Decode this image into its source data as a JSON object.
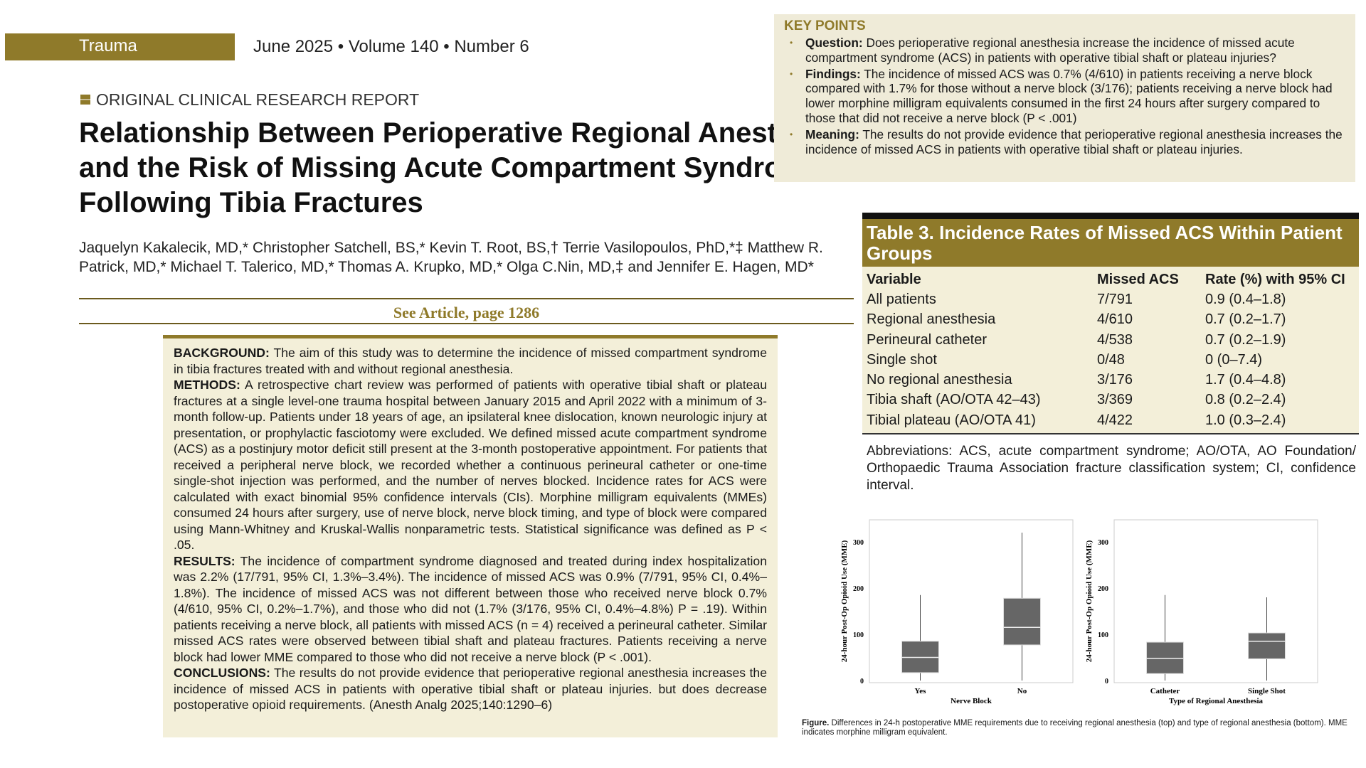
{
  "header": {
    "section": "Trauma",
    "issue": "June 2025 • Volume 140 • Number 6",
    "report_type": "ORIGINAL CLINICAL RESEARCH REPORT"
  },
  "article": {
    "title": "Relationship Between Perioperative Regional Anesthesia and the Risk of Missing Acute Compartment Syndrome Following Tibia Fractures",
    "authors": "Jaquelyn Kakalecik, MD,* Christopher Satchell, BS,* Kevin T. Root, BS,† Terrie Vasilopoulos, PhD,*‡ Matthew R. Patrick, MD,* Michael T. Talerico, MD,* Thomas A. Krupko, MD,* Olga C.Nin, MD,‡ and Jennifer E. Hagen, MD*",
    "see_article": "See Article, page 1286"
  },
  "abstract": [
    {
      "label": "BACKGROUND:",
      "text": " The aim of this study was to determine the incidence of missed compartment syndrome in tibia fractures treated with and without regional anesthesia."
    },
    {
      "label": "METHODS:",
      "text": " A retrospective chart review was performed of patients with operative tibial shaft or plateau fractures at a single level-one trauma hospital between January 2015 and April 2022 with a minimum of 3-month follow-up. Patients under 18 years of age, an ipsilateral knee dislocation, known neurologic injury at presentation, or prophylactic fasciotomy were excluded. We defined missed acute compartment syndrome (ACS) as a postinjury motor deficit still present at the 3-month postoperative appointment. For patients that received a peripheral nerve block, we recorded whether a continuous perineural catheter or one-time single-shot injection was performed, and the number of nerves blocked. Incidence rates for ACS were calculated with exact binomial 95% confidence intervals (CIs). Morphine milligram equivalents (MMEs) consumed 24 hours after surgery, use of nerve block, nerve block timing, and type of block were compared using Mann-Whitney and Kruskal-Wallis nonparametric tests. Statistical significance was defined as P < .05."
    },
    {
      "label": "RESULTS:",
      "text": " The incidence of compartment syndrome diagnosed and treated during index hospitalization was 2.2% (17/791, 95% CI, 1.3%–3.4%). The incidence of missed ACS was 0.9% (7/791, 95% CI, 0.4%–1.8%). The incidence of missed ACS was not different between those who received nerve block 0.7% (4/610, 95% CI, 0.2%–1.7%), and those who did not (1.7% (3/176, 95% CI, 0.4%–4.8%) P = .19). Within patients receiving a nerve block, all patients with missed ACS (n = 4) received a perineural catheter. Similar missed ACS rates were observed between tibial shaft and plateau fractures. Patients receiving a nerve block had lower MME compared to those who did not receive a nerve block (P < .001)."
    },
    {
      "label": "CONCLUSIONS:",
      "text": " The results do not provide evidence that perioperative regional anesthesia increases the incidence of missed ACS in patients with operative tibial shaft or plateau injuries. but does decrease postoperative opioid requirements.  (Anesth Analg 2025;140:1290–6)"
    }
  ],
  "key_points": {
    "title": "KEY POINTS",
    "items": [
      {
        "label": "Question:",
        "text": " Does perioperative regional anesthesia increase the incidence of missed acute compartment syndrome (ACS) in patients with operative tibial shaft or plateau injuries?"
      },
      {
        "label": "Findings:",
        "text": " The incidence of missed ACS was 0.7% (4/610) in patients receiving a nerve block compared with 1.7% for those without a nerve block (3/176); patients receiving a nerve block had lower morphine milligram equivalents consumed in the first 24 hours after surgery compared to those that did not receive a nerve block (P < .001)"
      },
      {
        "label": "Meaning:",
        "text": " The results do not provide evidence that perioperative regional anesthesia increases the incidence of missed ACS in patients with operative tibial shaft or plateau injuries."
      }
    ]
  },
  "table": {
    "title": "Table 3.  Incidence Rates of Missed ACS Within Patient Groups",
    "columns": [
      "Variable",
      "Missed ACS",
      "Rate (%) with 95% CI"
    ],
    "rows": [
      [
        "All patients",
        "7/791",
        "0.9 (0.4–1.8)"
      ],
      [
        "Regional anesthesia",
        "4/610",
        "0.7 (0.2–1.7)"
      ],
      [
        "Perineural catheter",
        "4/538",
        "0.7 (0.2–1.9)"
      ],
      [
        "Single shot",
        "0/48",
        "0 (0–7.4)"
      ],
      [
        "No regional anesthesia",
        "3/176",
        "1.7 (0.4–4.8)"
      ],
      [
        "Tibia shaft (AO/OTA 42–43)",
        "3/369",
        "0.8 (0.2–2.4)"
      ],
      [
        "Tibial plateau (AO/OTA 41)",
        "4/422",
        "1.0 (0.3–2.4)"
      ]
    ],
    "abbreviations": "Abbreviations: ACS, acute compartment syndrome; AO/OTA, AO Foundation/ Orthopaedic Trauma Association fracture classification system; CI, confidence interval."
  },
  "figure": {
    "caption_label": "Figure.",
    "caption": " Differences in 24-h postoperative MME requirements due to receiving regional anesthesia (top) and type of regional anesthesia (bottom). MME indicates morphine milligram equivalent."
  },
  "colors": {
    "accent": "#8f7a2a",
    "panel": "#f3efd9",
    "box": "#666666"
  },
  "chart_data": [
    {
      "type": "box",
      "xlabel": "Nerve Block",
      "ylabel": "24-hour Post-Op Opioid Use (MME)",
      "yticks": [
        0,
        100,
        200,
        300
      ],
      "ylim": [
        0,
        340
      ],
      "categories": [
        "Yes",
        "No"
      ],
      "boxes": [
        {
          "min": 0,
          "q1": 17,
          "median": 50,
          "q3": 85,
          "max": 185
        },
        {
          "min": 0,
          "q1": 77,
          "median": 115,
          "q3": 178,
          "max": 320
        }
      ]
    },
    {
      "type": "box",
      "xlabel": "Type of Regional Anesthesia",
      "ylabel": "24-hour Post-Op Opioid Use (MME)",
      "yticks": [
        0,
        100,
        200,
        300
      ],
      "ylim": [
        0,
        340
      ],
      "categories": [
        "Catheter",
        "Single Shot"
      ],
      "boxes": [
        {
          "min": 0,
          "q1": 15,
          "median": 48,
          "q3": 83,
          "max": 185
        },
        {
          "min": 0,
          "q1": 47,
          "median": 85,
          "q3": 103,
          "max": 180
        }
      ]
    }
  ]
}
